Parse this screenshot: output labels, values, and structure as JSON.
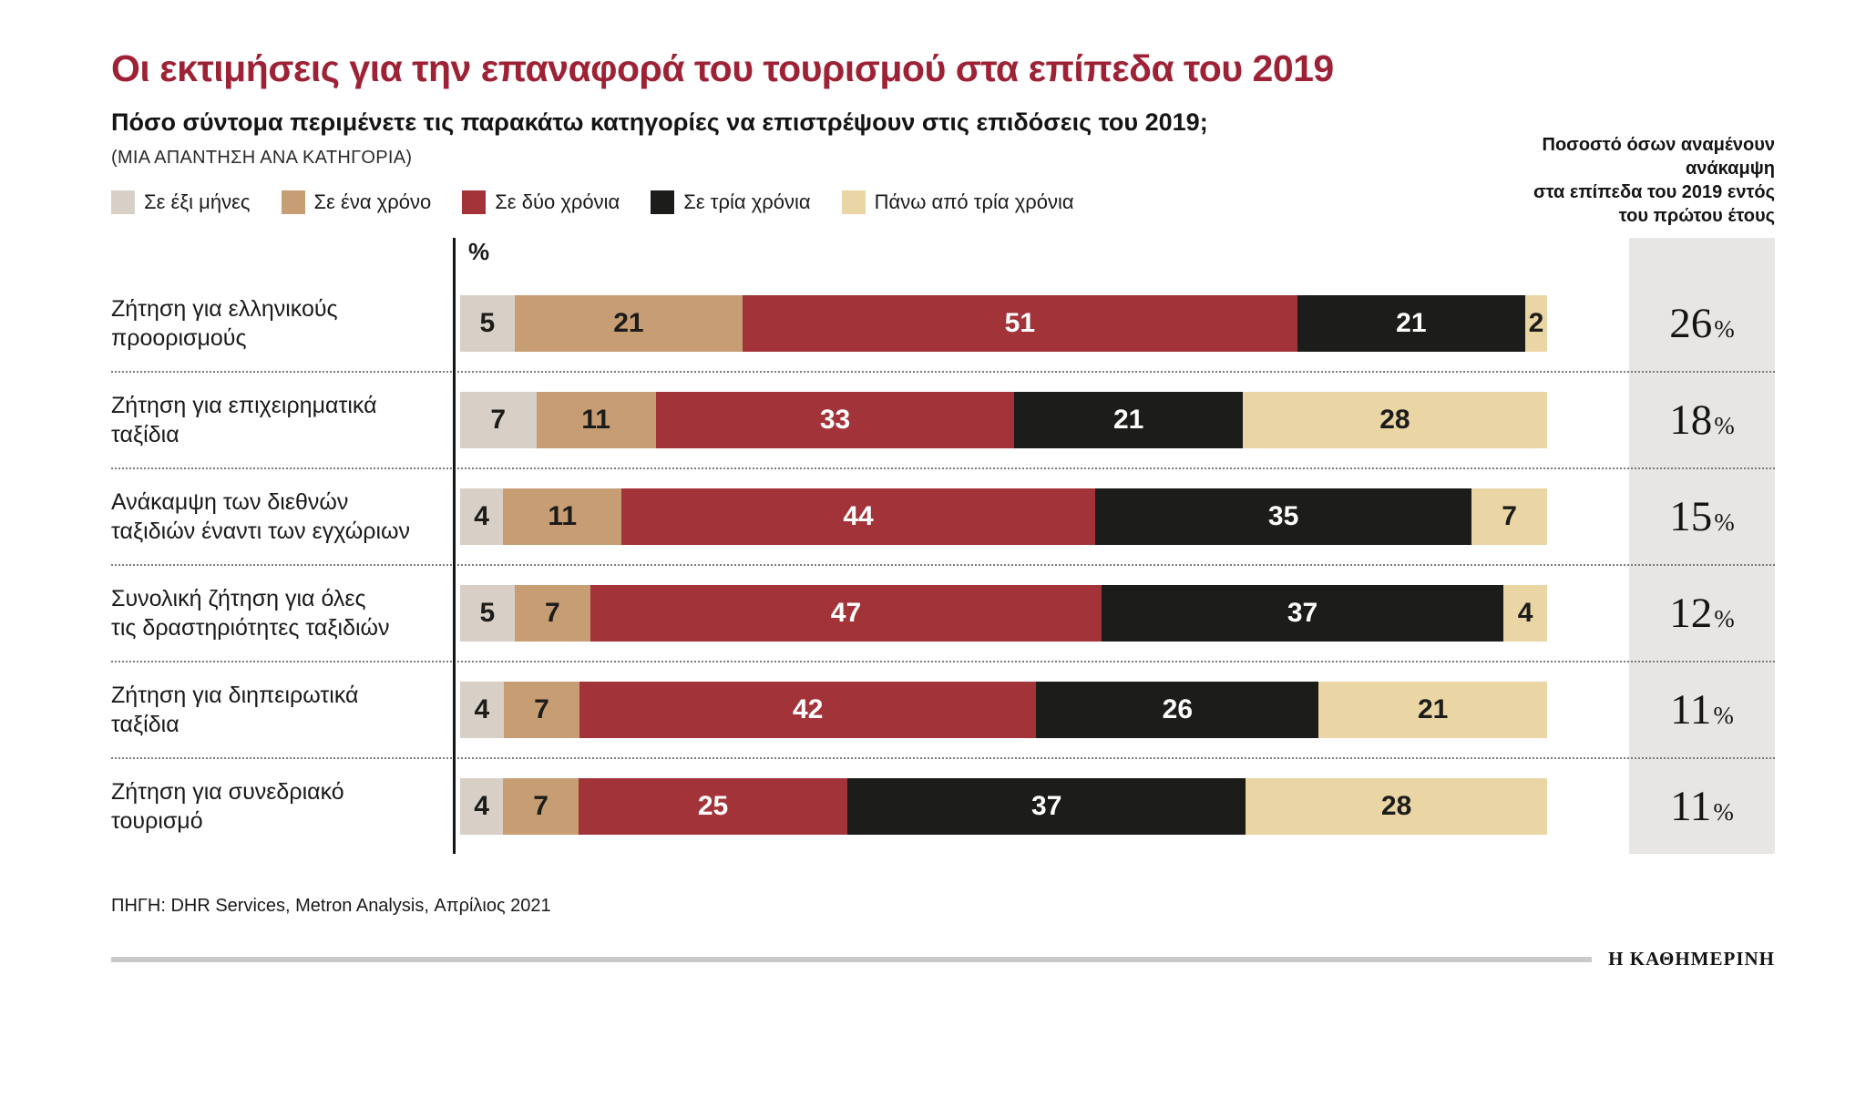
{
  "header": {
    "title": "Οι εκτιμήσεις για την επαναφορά του τουρισμού στα επίπεδα του 2019",
    "subtitle": "Πόσο σύντομα περιμένετε τις παρακάτω κατηγορίες να επιστρέψουν στις επιδόσεις του 2019;",
    "note": "(ΜΙΑ ΑΠΑΝΤΗΣΗ ΑΝΑ ΚΑΤΗΓΟΡΙΑ)"
  },
  "chart_data": {
    "type": "bar",
    "orientation": "horizontal",
    "stacked": true,
    "axis_unit": "%",
    "value_range": [
      0,
      100
    ],
    "legend_position": "top",
    "categories": [
      "Ζήτηση για ελληνικούς\nπροορισμούς",
      "Ζήτηση για επιχειρηματικά\nταξίδια",
      "Ανάκαμψη των διεθνών\nταξιδιών έναντι των εγχώριων",
      "Συνολική ζήτηση για όλες\nτις δραστηριότητες ταξιδιών",
      "Ζήτηση για διηπειρωτικά\nταξίδια",
      "Ζήτηση για συνεδριακό\nτουρισμό"
    ],
    "series": [
      {
        "name": "Σε έξι μήνες",
        "color": "#d8d0c6",
        "label_color": "#1c1c1a",
        "values": [
          5,
          7,
          4,
          5,
          4,
          4
        ]
      },
      {
        "name": "Σε ένα χρόνο",
        "color": "#c79d73",
        "label_color": "#1c1c1a",
        "values": [
          21,
          11,
          11,
          7,
          7,
          7
        ]
      },
      {
        "name": "Σε δύο χρόνια",
        "color": "#a23439",
        "label_color": "#ffffff",
        "values": [
          51,
          33,
          44,
          47,
          42,
          25
        ]
      },
      {
        "name": "Σε τρία χρόνια",
        "color": "#1c1c1a",
        "label_color": "#ffffff",
        "values": [
          21,
          21,
          35,
          37,
          26,
          37
        ]
      },
      {
        "name": "Πάνω από τρία χρόνια",
        "color": "#ead5a5",
        "label_color": "#1c1c1a",
        "values": [
          2,
          28,
          7,
          4,
          21,
          28
        ]
      }
    ],
    "recovery_within_first_year": {
      "label": "Ποσοστό όσων αναμένουν ανάκαμψη\nστα επίπεδα του 2019 εντός\nτου πρώτου έτους",
      "values": [
        26,
        18,
        15,
        12,
        11,
        11
      ],
      "suffix": "%"
    }
  },
  "footer": {
    "source": "ΠΗΓΗ: DHR Services, Metron Analysis, Απρίλιος 2021",
    "brand": "Η ΚΑΘΗΜΕΡΙΝΗ"
  },
  "colors": {
    "title": "#9e2235",
    "panel_background": "#e7e6e4",
    "axis": "#141414",
    "separator": "#7c7c7c"
  }
}
